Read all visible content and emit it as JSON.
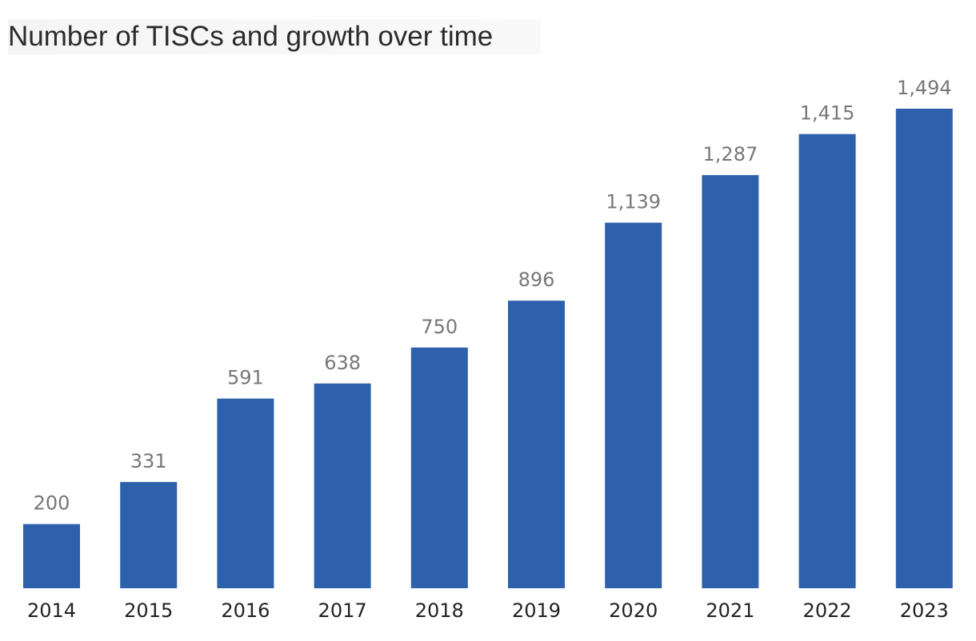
{
  "chart_data": {
    "type": "bar",
    "title": "Number of TISCs and growth over time",
    "categories": [
      "2014",
      "2015",
      "2016",
      "2017",
      "2018",
      "2019",
      "2020",
      "2021",
      "2022",
      "2023"
    ],
    "values": [
      200,
      331,
      591,
      638,
      750,
      896,
      1139,
      1287,
      1415,
      1494
    ],
    "value_labels": [
      "200",
      "331",
      "591",
      "638",
      "750",
      "896",
      "1,139",
      "1,287",
      "1,415",
      "1,494"
    ],
    "xlabel": "",
    "ylabel": "",
    "ylim": [
      0,
      1494
    ],
    "grid": false,
    "colors": {
      "bar": "#2e61ab",
      "value_label": "#777777",
      "tick_label": "#222222"
    }
  }
}
